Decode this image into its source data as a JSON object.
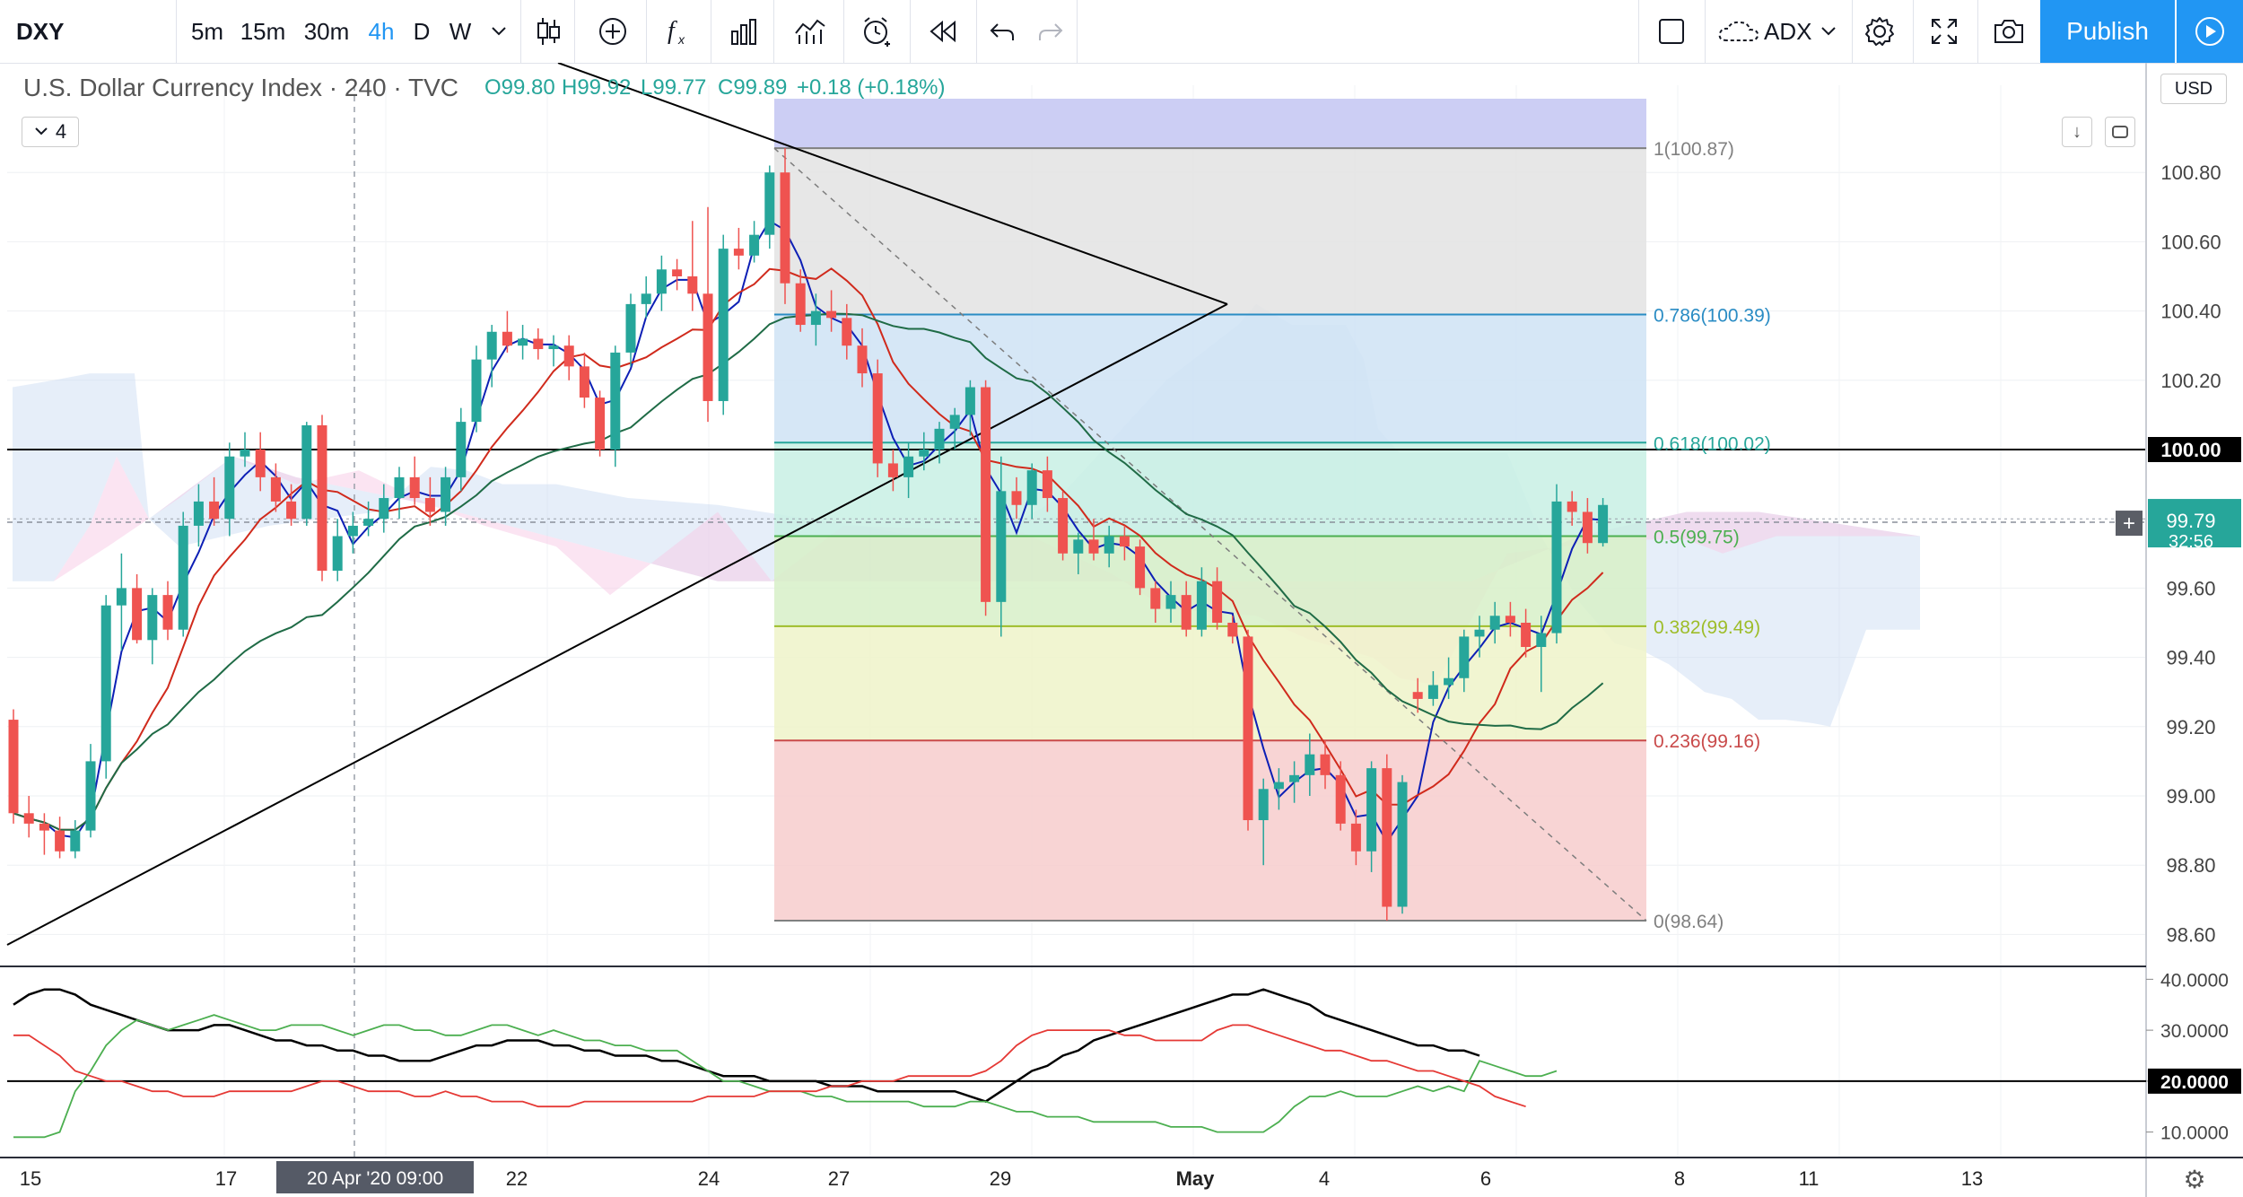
{
  "symbol": "DXY",
  "intervals": [
    "5m",
    "15m",
    "30m",
    "4h",
    "D",
    "W"
  ],
  "active_interval": "4h",
  "indicator_name": "ADX",
  "publish_label": "Publish",
  "legend": {
    "title": "U.S. Dollar Currency Index · 240 · TVC",
    "open": "O99.80",
    "high": "H99.92",
    "low": "L99.77",
    "close": "C99.89",
    "change": "+0.18 (+0.18%)",
    "collapse_count": "4"
  },
  "currency_label": "USD",
  "colors": {
    "up": "#26a69a",
    "down": "#ef5350",
    "accent": "#2196f3"
  },
  "chart_data": [
    {
      "type": "candlestick",
      "symbol": "DXY",
      "ylim": [
        98.5,
        101.0
      ],
      "y_ticks": [
        "100.80",
        "100.60",
        "100.40",
        "100.20",
        "100.00",
        "99.60",
        "99.40",
        "99.20",
        "99.00",
        "98.80",
        "98.60"
      ],
      "x_ticks": [
        "15",
        "17",
        "20 Apr '20   09:00",
        "22",
        "24",
        "27",
        "29",
        "May",
        "4",
        "6",
        "8",
        "11",
        "13"
      ],
      "price_labels": {
        "last": "99.79",
        "countdown": "32:56",
        "level": "100.00"
      },
      "candles": [
        {
          "o": 99.22,
          "h": 99.25,
          "l": 98.92,
          "c": 98.95
        },
        {
          "o": 98.95,
          "h": 99.0,
          "l": 98.88,
          "c": 98.92
        },
        {
          "o": 98.92,
          "h": 98.95,
          "l": 98.83,
          "c": 98.9
        },
        {
          "o": 98.9,
          "h": 98.94,
          "l": 98.82,
          "c": 98.84
        },
        {
          "o": 98.84,
          "h": 98.93,
          "l": 98.82,
          "c": 98.9
        },
        {
          "o": 98.9,
          "h": 99.15,
          "l": 98.88,
          "c": 99.1
        },
        {
          "o": 99.1,
          "h": 99.58,
          "l": 99.05,
          "c": 99.55
        },
        {
          "o": 99.55,
          "h": 99.7,
          "l": 99.42,
          "c": 99.6
        },
        {
          "o": 99.6,
          "h": 99.64,
          "l": 99.44,
          "c": 99.45
        },
        {
          "o": 99.45,
          "h": 99.6,
          "l": 99.38,
          "c": 99.58
        },
        {
          "o": 99.58,
          "h": 99.62,
          "l": 99.45,
          "c": 99.48
        },
        {
          "o": 99.48,
          "h": 99.82,
          "l": 99.46,
          "c": 99.78
        },
        {
          "o": 99.78,
          "h": 99.9,
          "l": 99.72,
          "c": 99.85
        },
        {
          "o": 99.85,
          "h": 99.92,
          "l": 99.78,
          "c": 99.8
        },
        {
          "o": 99.8,
          "h": 100.02,
          "l": 99.75,
          "c": 99.98
        },
        {
          "o": 99.98,
          "h": 100.05,
          "l": 99.95,
          "c": 100.0
        },
        {
          "o": 100.0,
          "h": 100.05,
          "l": 99.88,
          "c": 99.92
        },
        {
          "o": 99.92,
          "h": 99.96,
          "l": 99.82,
          "c": 99.85
        },
        {
          "o": 99.85,
          "h": 99.9,
          "l": 99.78,
          "c": 99.8
        },
        {
          "o": 99.8,
          "h": 100.08,
          "l": 99.78,
          "c": 100.07
        },
        {
          "o": 100.07,
          "h": 100.1,
          "l": 99.62,
          "c": 99.65
        },
        {
          "o": 99.65,
          "h": 99.8,
          "l": 99.62,
          "c": 99.75
        },
        {
          "o": 99.75,
          "h": 99.82,
          "l": 99.7,
          "c": 99.78
        },
        {
          "o": 99.78,
          "h": 99.85,
          "l": 99.75,
          "c": 99.8
        },
        {
          "o": 99.8,
          "h": 99.9,
          "l": 99.76,
          "c": 99.86
        },
        {
          "o": 99.86,
          "h": 99.95,
          "l": 99.8,
          "c": 99.92
        },
        {
          "o": 99.92,
          "h": 99.98,
          "l": 99.84,
          "c": 99.86
        },
        {
          "o": 99.86,
          "h": 99.92,
          "l": 99.78,
          "c": 99.82
        },
        {
          "o": 99.82,
          "h": 99.95,
          "l": 99.78,
          "c": 99.92
        },
        {
          "o": 99.92,
          "h": 100.12,
          "l": 99.88,
          "c": 100.08
        },
        {
          "o": 100.08,
          "h": 100.3,
          "l": 100.05,
          "c": 100.26
        },
        {
          "o": 100.26,
          "h": 100.36,
          "l": 100.18,
          "c": 100.34
        },
        {
          "o": 100.34,
          "h": 100.4,
          "l": 100.28,
          "c": 100.3
        },
        {
          "o": 100.3,
          "h": 100.36,
          "l": 100.26,
          "c": 100.32
        },
        {
          "o": 100.32,
          "h": 100.35,
          "l": 100.26,
          "c": 100.29
        },
        {
          "o": 100.29,
          "h": 100.33,
          "l": 100.24,
          "c": 100.3
        },
        {
          "o": 100.3,
          "h": 100.33,
          "l": 100.2,
          "c": 100.24
        },
        {
          "o": 100.24,
          "h": 100.28,
          "l": 100.12,
          "c": 100.15
        },
        {
          "o": 100.15,
          "h": 100.17,
          "l": 99.98,
          "c": 100.0
        },
        {
          "o": 100.0,
          "h": 100.3,
          "l": 99.95,
          "c": 100.28
        },
        {
          "o": 100.28,
          "h": 100.45,
          "l": 100.24,
          "c": 100.42
        },
        {
          "o": 100.42,
          "h": 100.5,
          "l": 100.38,
          "c": 100.45
        },
        {
          "o": 100.45,
          "h": 100.56,
          "l": 100.4,
          "c": 100.52
        },
        {
          "o": 100.52,
          "h": 100.55,
          "l": 100.46,
          "c": 100.5
        },
        {
          "o": 100.5,
          "h": 100.66,
          "l": 100.4,
          "c": 100.45
        },
        {
          "o": 100.45,
          "h": 100.7,
          "l": 100.08,
          "c": 100.14
        },
        {
          "o": 100.14,
          "h": 100.62,
          "l": 100.1,
          "c": 100.58
        },
        {
          "o": 100.58,
          "h": 100.64,
          "l": 100.52,
          "c": 100.56
        },
        {
          "o": 100.56,
          "h": 100.66,
          "l": 100.54,
          "c": 100.62
        },
        {
          "o": 100.62,
          "h": 100.82,
          "l": 100.58,
          "c": 100.8
        },
        {
          "o": 100.8,
          "h": 100.87,
          "l": 100.42,
          "c": 100.48
        },
        {
          "o": 100.48,
          "h": 100.52,
          "l": 100.34,
          "c": 100.36
        },
        {
          "o": 100.36,
          "h": 100.45,
          "l": 100.3,
          "c": 100.4
        },
        {
          "o": 100.4,
          "h": 100.46,
          "l": 100.34,
          "c": 100.38
        },
        {
          "o": 100.38,
          "h": 100.42,
          "l": 100.26,
          "c": 100.3
        },
        {
          "o": 100.3,
          "h": 100.35,
          "l": 100.18,
          "c": 100.22
        },
        {
          "o": 100.22,
          "h": 100.26,
          "l": 99.92,
          "c": 99.96
        },
        {
          "o": 99.96,
          "h": 100.0,
          "l": 99.88,
          "c": 99.92
        },
        {
          "o": 99.92,
          "h": 100.02,
          "l": 99.86,
          "c": 99.98
        },
        {
          "o": 99.98,
          "h": 100.05,
          "l": 99.94,
          "c": 100.0
        },
        {
          "o": 100.0,
          "h": 100.08,
          "l": 99.96,
          "c": 100.06
        },
        {
          "o": 100.06,
          "h": 100.12,
          "l": 100.0,
          "c": 100.1
        },
        {
          "o": 100.1,
          "h": 100.2,
          "l": 100.04,
          "c": 100.18
        },
        {
          "o": 100.18,
          "h": 100.2,
          "l": 99.52,
          "c": 99.56
        },
        {
          "o": 99.56,
          "h": 99.98,
          "l": 99.46,
          "c": 99.88
        },
        {
          "o": 99.88,
          "h": 99.92,
          "l": 99.8,
          "c": 99.84
        },
        {
          "o": 99.84,
          "h": 99.96,
          "l": 99.8,
          "c": 99.94
        },
        {
          "o": 99.94,
          "h": 99.98,
          "l": 99.82,
          "c": 99.86
        },
        {
          "o": 99.86,
          "h": 99.88,
          "l": 99.68,
          "c": 99.7
        },
        {
          "o": 99.7,
          "h": 99.76,
          "l": 99.64,
          "c": 99.74
        },
        {
          "o": 99.74,
          "h": 99.8,
          "l": 99.68,
          "c": 99.7
        },
        {
          "o": 99.7,
          "h": 99.78,
          "l": 99.66,
          "c": 99.75
        },
        {
          "o": 99.75,
          "h": 99.78,
          "l": 99.68,
          "c": 99.72
        },
        {
          "o": 99.72,
          "h": 99.74,
          "l": 99.58,
          "c": 99.6
        },
        {
          "o": 99.6,
          "h": 99.62,
          "l": 99.5,
          "c": 99.54
        },
        {
          "o": 99.54,
          "h": 99.62,
          "l": 99.5,
          "c": 99.58
        },
        {
          "o": 99.58,
          "h": 99.62,
          "l": 99.46,
          "c": 99.48
        },
        {
          "o": 99.48,
          "h": 99.66,
          "l": 99.46,
          "c": 99.62
        },
        {
          "o": 99.62,
          "h": 99.66,
          "l": 99.48,
          "c": 99.5
        },
        {
          "o": 99.5,
          "h": 99.52,
          "l": 99.44,
          "c": 99.46
        },
        {
          "o": 99.46,
          "h": 99.48,
          "l": 98.9,
          "c": 98.93
        },
        {
          "o": 98.93,
          "h": 99.05,
          "l": 98.8,
          "c": 99.02
        },
        {
          "o": 99.02,
          "h": 99.08,
          "l": 98.96,
          "c": 99.04
        },
        {
          "o": 99.04,
          "h": 99.1,
          "l": 98.98,
          "c": 99.06
        },
        {
          "o": 99.06,
          "h": 99.18,
          "l": 99.0,
          "c": 99.12
        },
        {
          "o": 99.12,
          "h": 99.16,
          "l": 99.02,
          "c": 99.06
        },
        {
          "o": 99.06,
          "h": 99.1,
          "l": 98.9,
          "c": 98.92
        },
        {
          "o": 98.92,
          "h": 98.96,
          "l": 98.8,
          "c": 98.84
        },
        {
          "o": 98.84,
          "h": 99.1,
          "l": 98.78,
          "c": 99.08
        },
        {
          "o": 99.08,
          "h": 99.12,
          "l": 98.64,
          "c": 98.68
        },
        {
          "o": 98.68,
          "h": 99.06,
          "l": 98.66,
          "c": 99.04
        },
        {
          "o": 99.3,
          "h": 99.34,
          "l": 99.24,
          "c": 99.28
        },
        {
          "o": 99.28,
          "h": 99.36,
          "l": 99.26,
          "c": 99.32
        },
        {
          "o": 99.32,
          "h": 99.4,
          "l": 99.28,
          "c": 99.34
        },
        {
          "o": 99.34,
          "h": 99.48,
          "l": 99.3,
          "c": 99.46
        },
        {
          "o": 99.46,
          "h": 99.52,
          "l": 99.4,
          "c": 99.48
        },
        {
          "o": 99.48,
          "h": 99.56,
          "l": 99.44,
          "c": 99.52
        },
        {
          "o": 99.52,
          "h": 99.56,
          "l": 99.46,
          "c": 99.5
        },
        {
          "o": 99.5,
          "h": 99.54,
          "l": 99.4,
          "c": 99.43
        },
        {
          "o": 99.43,
          "h": 99.52,
          "l": 99.3,
          "c": 99.47
        },
        {
          "o": 99.47,
          "h": 99.9,
          "l": 99.44,
          "c": 99.85
        },
        {
          "o": 99.85,
          "h": 99.88,
          "l": 99.78,
          "c": 99.82
        },
        {
          "o": 99.82,
          "h": 99.86,
          "l": 99.7,
          "c": 99.73
        },
        {
          "o": 99.73,
          "h": 99.86,
          "l": 99.72,
          "c": 99.84
        }
      ],
      "moving_averages": [
        {
          "color": "#0d1fb5",
          "period": 3
        },
        {
          "color": "#d02a1c",
          "period": 8
        },
        {
          "color": "#1f6b46",
          "period": 21
        }
      ],
      "fibonacci": [
        {
          "ratio": 1,
          "label": "1(100.87)",
          "value": 100.87
        },
        {
          "ratio": 0.786,
          "label": "0.786(100.39)",
          "value": 100.39
        },
        {
          "ratio": 0.618,
          "label": "0.618(100.02)",
          "value": 100.02
        },
        {
          "ratio": 0.5,
          "label": "0.5(99.75)",
          "value": 99.75
        },
        {
          "ratio": 0.382,
          "label": "0.382(99.49)",
          "value": 99.49
        },
        {
          "ratio": 0.236,
          "label": "0.236(99.16)",
          "value": 99.16
        },
        {
          "ratio": 0,
          "label": "0(98.64)",
          "value": 98.64
        }
      ]
    },
    {
      "type": "line",
      "name": "ADX",
      "ylim": [
        5,
        42
      ],
      "y_ticks": [
        "40.0000",
        "30.0000",
        "20.0000",
        "10.0000"
      ],
      "reference_level": "20.0000",
      "series": [
        {
          "name": "ADX",
          "color": "#000000",
          "values": [
            35,
            37,
            38,
            38,
            37,
            35,
            34,
            33,
            32,
            31,
            30,
            30,
            30,
            31,
            31,
            30,
            29,
            28,
            28,
            27,
            27,
            26,
            26,
            25,
            25,
            24,
            24,
            24,
            25,
            26,
            27,
            27,
            28,
            28,
            28,
            27,
            27,
            26,
            26,
            25,
            25,
            25,
            24,
            24,
            23,
            22,
            21,
            21,
            21,
            20,
            20,
            20,
            20,
            19,
            19,
            19,
            18,
            18,
            18,
            18,
            18,
            18,
            17,
            16,
            18,
            20,
            22,
            23,
            25,
            26,
            28,
            29,
            30,
            31,
            32,
            33,
            34,
            35,
            36,
            37,
            37,
            38,
            37,
            36,
            35,
            33,
            32,
            31,
            30,
            29,
            28,
            27,
            27,
            26,
            26,
            25
          ]
        },
        {
          "name": "DI+",
          "color": "#4caf50",
          "values": [
            9,
            9,
            9,
            10,
            18,
            22,
            27,
            30,
            32,
            31,
            30,
            31,
            32,
            33,
            32,
            31,
            30,
            30,
            31,
            31,
            31,
            30,
            29,
            30,
            31,
            31,
            30,
            30,
            29,
            29,
            30,
            31,
            31,
            30,
            29,
            30,
            29,
            28,
            28,
            27,
            27,
            26,
            26,
            26,
            24,
            22,
            20,
            20,
            19,
            18,
            18,
            18,
            17,
            17,
            16,
            16,
            16,
            16,
            16,
            15,
            15,
            15,
            16,
            16,
            15,
            14,
            14,
            13,
            13,
            13,
            12,
            12,
            12,
            12,
            12,
            11,
            11,
            11,
            10,
            10,
            10,
            10,
            12,
            15,
            17,
            17,
            18,
            17,
            17,
            17,
            18,
            19,
            18,
            19,
            18,
            24,
            23,
            22,
            21,
            21,
            22
          ]
        },
        {
          "name": "DI-",
          "color": "#e53935",
          "values": [
            29,
            29,
            27,
            25,
            22,
            21,
            20,
            20,
            19,
            18,
            18,
            17,
            17,
            17,
            18,
            18,
            18,
            18,
            18,
            19,
            20,
            20,
            19,
            18,
            18,
            18,
            17,
            17,
            18,
            17,
            17,
            16,
            16,
            16,
            15,
            15,
            15,
            16,
            16,
            16,
            16,
            16,
            16,
            16,
            16,
            17,
            17,
            17,
            17,
            18,
            18,
            18,
            18,
            19,
            19,
            20,
            20,
            20,
            21,
            21,
            21,
            21,
            21,
            22,
            24,
            27,
            29,
            30,
            30,
            30,
            30,
            30,
            29,
            29,
            28,
            28,
            28,
            28,
            30,
            31,
            31,
            30,
            29,
            28,
            27,
            26,
            26,
            25,
            24,
            24,
            23,
            22,
            22,
            21,
            20,
            19,
            17,
            16,
            15
          ]
        }
      ]
    }
  ]
}
